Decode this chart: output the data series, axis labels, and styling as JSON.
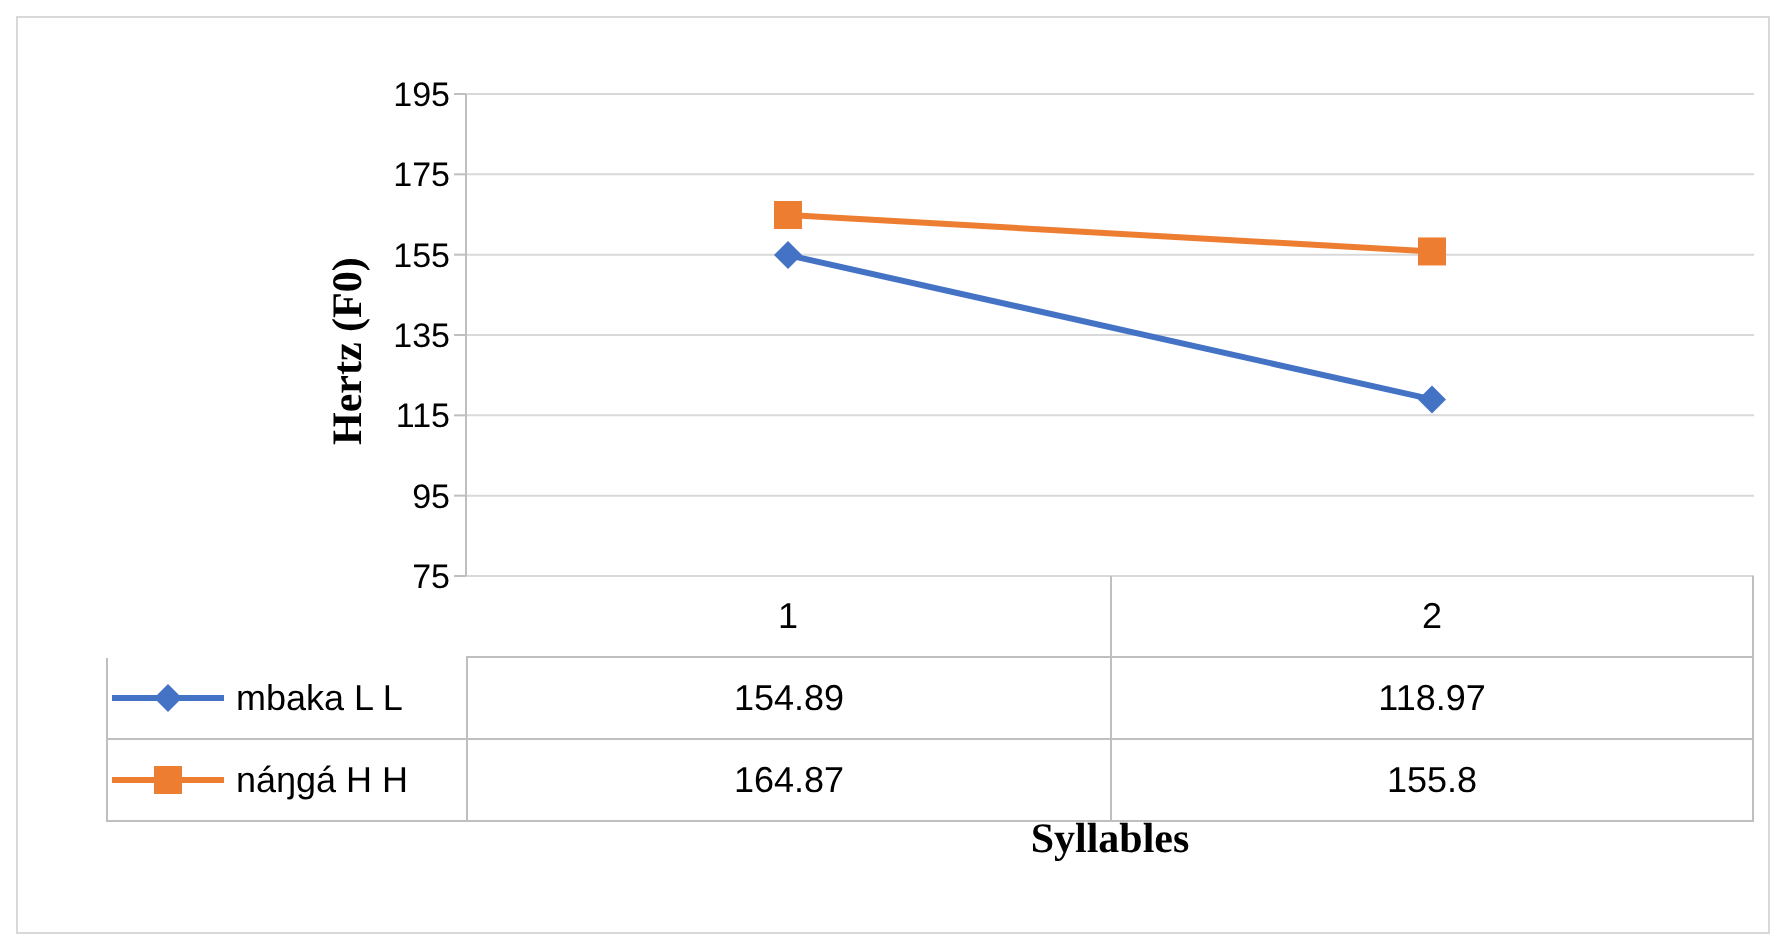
{
  "chart_data": {
    "type": "line",
    "ylabel": "Hertz (F0)",
    "xlabel": "Syllables",
    "categories": [
      "1",
      "2"
    ],
    "series": [
      {
        "name": "mbaka L L",
        "color": "#4472c4",
        "marker": "diamond",
        "values": [
          154.89,
          118.97
        ]
      },
      {
        "name": "náŋgá H H",
        "color": "#ed7d31",
        "marker": "square",
        "values": [
          164.87,
          155.8
        ]
      }
    ],
    "ylim": [
      75,
      195
    ],
    "yticks": [
      75,
      95,
      115,
      135,
      155,
      175,
      195
    ],
    "grid": "y",
    "data_labels": true,
    "legend": "bottom"
  }
}
